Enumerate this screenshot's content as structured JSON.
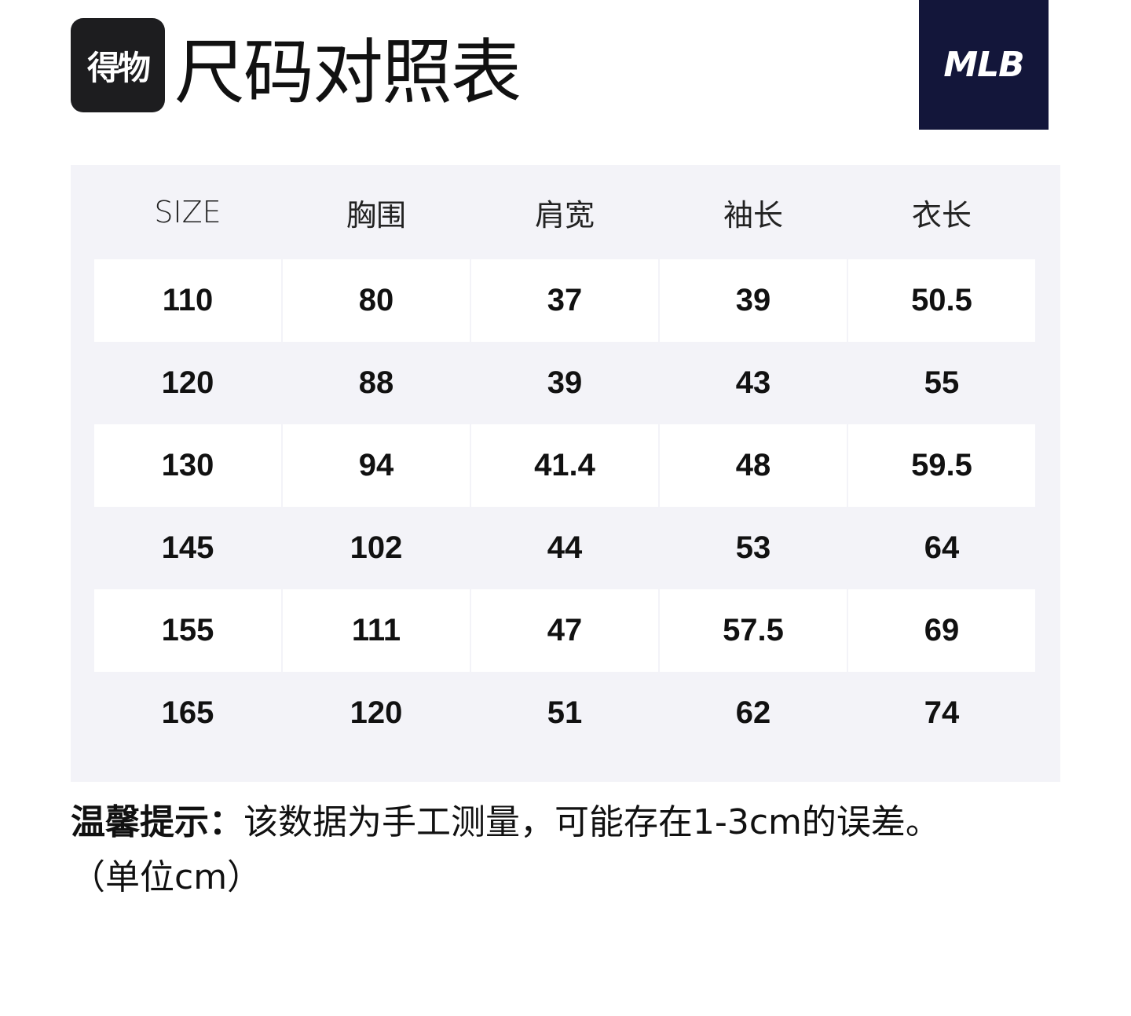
{
  "header": {
    "app_logo_text": "得物",
    "title": "尺码对照表",
    "brand_logo_text": "MLB",
    "brand_color": "#13163a"
  },
  "table": {
    "columns": [
      "SIZE",
      "胸围",
      "肩宽",
      "袖长",
      "衣长"
    ],
    "rows": [
      [
        "110",
        "80",
        "37",
        "39",
        "50.5"
      ],
      [
        "120",
        "88",
        "39",
        "43",
        "55"
      ],
      [
        "130",
        "94",
        "41.4",
        "48",
        "59.5"
      ],
      [
        "145",
        "102",
        "44",
        "53",
        "64"
      ],
      [
        "155",
        "111",
        "47",
        "57.5",
        "69"
      ],
      [
        "165",
        "120",
        "51",
        "62",
        "74"
      ]
    ]
  },
  "note": {
    "label": "温馨提示：",
    "text": "该数据为手工测量，可能存在1-3cm的误差。",
    "unit": "（单位cm）"
  }
}
